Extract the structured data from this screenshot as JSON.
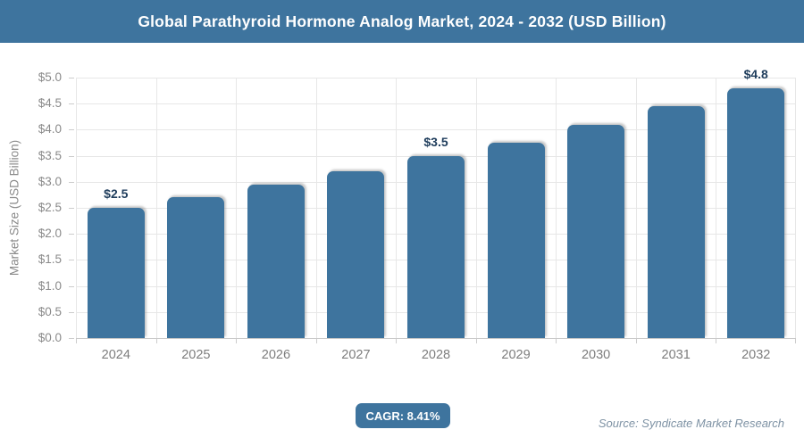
{
  "header": {
    "title": "Global Parathyroid Hormone Analog Market, 2024 - 2032 (USD Billion)"
  },
  "chart_data": {
    "type": "bar",
    "title": "Global Parathyroid Hormone Analog Market, 2024 - 2032 (USD Billion)",
    "categories": [
      "2024",
      "2025",
      "2026",
      "2027",
      "2028",
      "2029",
      "2030",
      "2031",
      "2032"
    ],
    "values": [
      2.5,
      2.7,
      2.95,
      3.2,
      3.5,
      3.75,
      4.1,
      4.45,
      4.8
    ],
    "point_labels": [
      "$2.5",
      "",
      "",
      "",
      "$3.5",
      "",
      "",
      "",
      "$4.8"
    ],
    "xlabel": "",
    "ylabel": "Market Size (USD Billion)",
    "ylim": [
      0,
      5
    ],
    "y_ticks": [
      {
        "v": 0.0,
        "label": "$0.0"
      },
      {
        "v": 0.5,
        "label": "$0.5"
      },
      {
        "v": 1.0,
        "label": "$1.0"
      },
      {
        "v": 1.5,
        "label": "$1.5"
      },
      {
        "v": 2.0,
        "label": "$2.0"
      },
      {
        "v": 2.5,
        "label": "$2.5"
      },
      {
        "v": 3.0,
        "label": "$3.0"
      },
      {
        "v": 3.5,
        "label": "$3.5"
      },
      {
        "v": 4.0,
        "label": "$4.0"
      },
      {
        "v": 4.5,
        "label": "$4.5"
      },
      {
        "v": 5.0,
        "label": "$5.0"
      }
    ],
    "grid": "both",
    "legend": "none",
    "bar_color": "#3e749e",
    "value_label_color": "#1f3d5c"
  },
  "footer": {
    "cagr_label": "CAGR: 8.41%",
    "source": "Source: Syndicate Market Research"
  },
  "colors": {
    "accent": "#3e749e",
    "header_bg": "#3e749e",
    "grid": "#e7e7e7",
    "axis_line": "#c9c9c9",
    "tick_text": "#8a8a8a"
  }
}
